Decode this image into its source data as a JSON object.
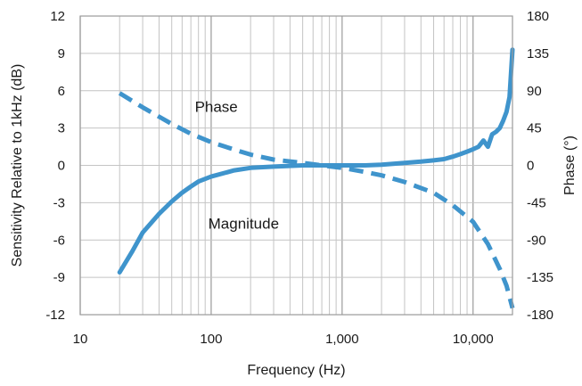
{
  "chart_data": {
    "type": "line",
    "xlabel": "Frequency (Hz)",
    "ylabel": "Sensitivity Relative to 1kHz (dB)",
    "y2label": "Phase (°)",
    "xscale": "log",
    "xlim": [
      10,
      20000
    ],
    "ylim": [
      -12,
      12
    ],
    "y2lim": [
      -180,
      180
    ],
    "grid": true,
    "x_ticks": [
      {
        "value": 10,
        "label": "10"
      },
      {
        "value": 100,
        "label": "100"
      },
      {
        "value": 1000,
        "label": "1,000"
      },
      {
        "value": 10000,
        "label": "10,000"
      }
    ],
    "y_ticks": [
      {
        "value": 12,
        "label": "12"
      },
      {
        "value": 9,
        "label": "9"
      },
      {
        "value": 6,
        "label": "6"
      },
      {
        "value": 3,
        "label": "3"
      },
      {
        "value": 0,
        "label": "0"
      },
      {
        "value": -3,
        "label": "-3"
      },
      {
        "value": -6,
        "label": "-6"
      },
      {
        "value": -9,
        "label": "-9"
      },
      {
        "value": -12,
        "label": "-12"
      }
    ],
    "y2_ticks": [
      {
        "value": 180,
        "label": "180"
      },
      {
        "value": 135,
        "label": "135"
      },
      {
        "value": 90,
        "label": "90"
      },
      {
        "value": 45,
        "label": "45"
      },
      {
        "value": 0,
        "label": "0"
      },
      {
        "value": -45,
        "label": "-45"
      },
      {
        "value": -90,
        "label": "-90"
      },
      {
        "value": -135,
        "label": "-135"
      },
      {
        "value": -180,
        "label": "-180"
      }
    ],
    "series": [
      {
        "name": "Magnitude",
        "axis": "left",
        "style": "solid",
        "color": "#3f94cc",
        "points": [
          [
            20,
            -8.6
          ],
          [
            25,
            -6.9
          ],
          [
            30,
            -5.4
          ],
          [
            40,
            -3.9
          ],
          [
            50,
            -2.9
          ],
          [
            60,
            -2.2
          ],
          [
            70,
            -1.7
          ],
          [
            80,
            -1.3
          ],
          [
            100,
            -0.9
          ],
          [
            150,
            -0.4
          ],
          [
            200,
            -0.2
          ],
          [
            300,
            -0.1
          ],
          [
            500,
            0.0
          ],
          [
            700,
            0.0
          ],
          [
            1000,
            0.0
          ],
          [
            1500,
            0.0
          ],
          [
            2000,
            0.05
          ],
          [
            3000,
            0.2
          ],
          [
            4000,
            0.3
          ],
          [
            5000,
            0.4
          ],
          [
            6000,
            0.5
          ],
          [
            7000,
            0.7
          ],
          [
            8000,
            0.9
          ],
          [
            9000,
            1.1
          ],
          [
            10000,
            1.3
          ],
          [
            11000,
            1.5
          ],
          [
            12000,
            2.0
          ],
          [
            13000,
            1.5
          ],
          [
            14000,
            2.5
          ],
          [
            15000,
            2.7
          ],
          [
            16000,
            3.0
          ],
          [
            17000,
            3.6
          ],
          [
            18000,
            4.3
          ],
          [
            19000,
            5.5
          ],
          [
            20000,
            9.3
          ]
        ]
      },
      {
        "name": "Phase",
        "axis": "right",
        "style": "dashed",
        "color": "#3f94cc",
        "points": [
          [
            20,
            87
          ],
          [
            30,
            70
          ],
          [
            50,
            50
          ],
          [
            70,
            38
          ],
          [
            100,
            28
          ],
          [
            150,
            19
          ],
          [
            200,
            13
          ],
          [
            300,
            7
          ],
          [
            500,
            3
          ],
          [
            700,
            0
          ],
          [
            1000,
            -3
          ],
          [
            1500,
            -8
          ],
          [
            2000,
            -12
          ],
          [
            3000,
            -20
          ],
          [
            5000,
            -33
          ],
          [
            7000,
            -48
          ],
          [
            10000,
            -68
          ],
          [
            13000,
            -95
          ],
          [
            16000,
            -125
          ],
          [
            18000,
            -145
          ],
          [
            20000,
            -172
          ]
        ]
      }
    ],
    "annotations": [
      {
        "text": "Phase",
        "x": 75,
        "y": 4.3
      },
      {
        "text": "Magnitude",
        "x": 95,
        "y": -5.1
      }
    ]
  }
}
